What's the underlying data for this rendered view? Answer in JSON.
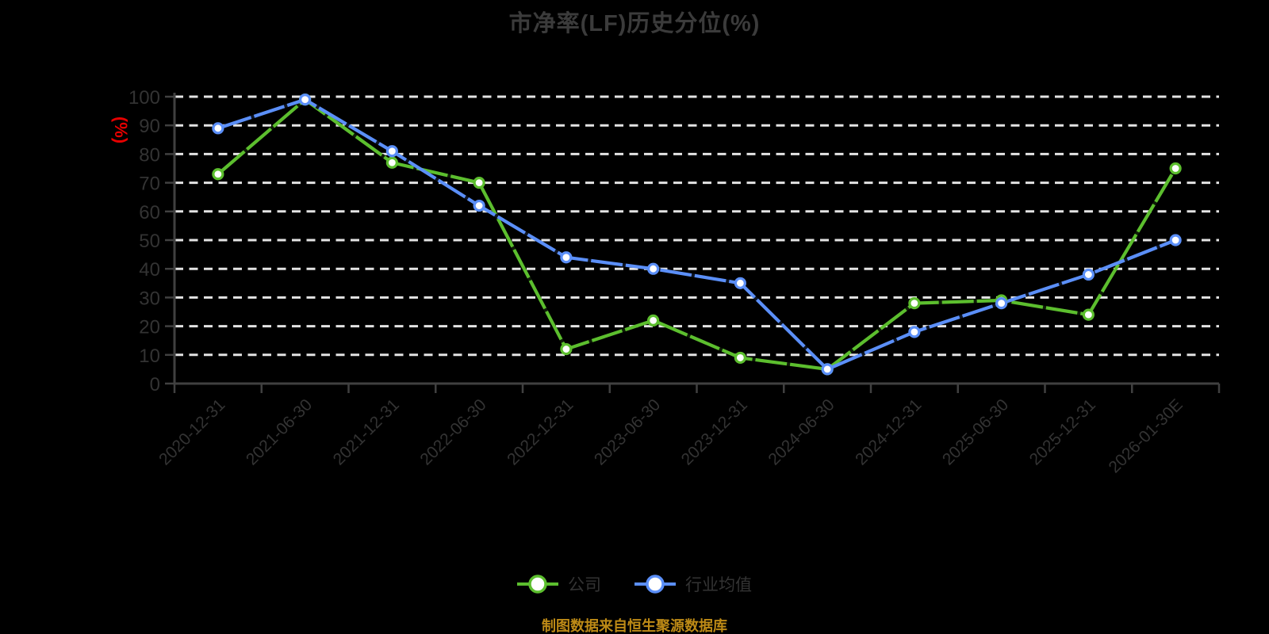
{
  "page": {
    "title": "市净率(LF)历史分位(%)",
    "footer_note": "制图数据来自恒生聚源数据库"
  },
  "colors": {
    "company_series": "#5cbe2e",
    "industry_series": "#5b8ff8",
    "y_axis_unit": "#e60000",
    "footer_note": "#bd8a16",
    "axis_labels": "#333333",
    "gridlines": "#e3e3e3"
  },
  "chart_data": {
    "type": "line",
    "title": "市净率(LF)历史分位(%)",
    "ylabel": "(%)",
    "ylim": [
      0,
      100
    ],
    "ytick_interval": 10,
    "grid": true,
    "legend_position": "bottom",
    "categories": [
      "2020-12-31",
      "2021-06-30",
      "2021-12-31",
      "2022-06-30",
      "2022-12-31",
      "2023-06-30",
      "2023-12-31",
      "2024-06-30",
      "2024-12-31",
      "2025-06-30",
      "2025-12-31",
      "2026-01-30E"
    ],
    "series": [
      {
        "name": "公司",
        "color": "#5cbe2e",
        "values": [
          73,
          99,
          77,
          70,
          12,
          22,
          9,
          5,
          28,
          29,
          24,
          75
        ]
      },
      {
        "name": "行业均值",
        "color": "#5b8ff8",
        "values": [
          89,
          99,
          81,
          62,
          44,
          40,
          35,
          5,
          18,
          28,
          38,
          50
        ]
      }
    ]
  }
}
